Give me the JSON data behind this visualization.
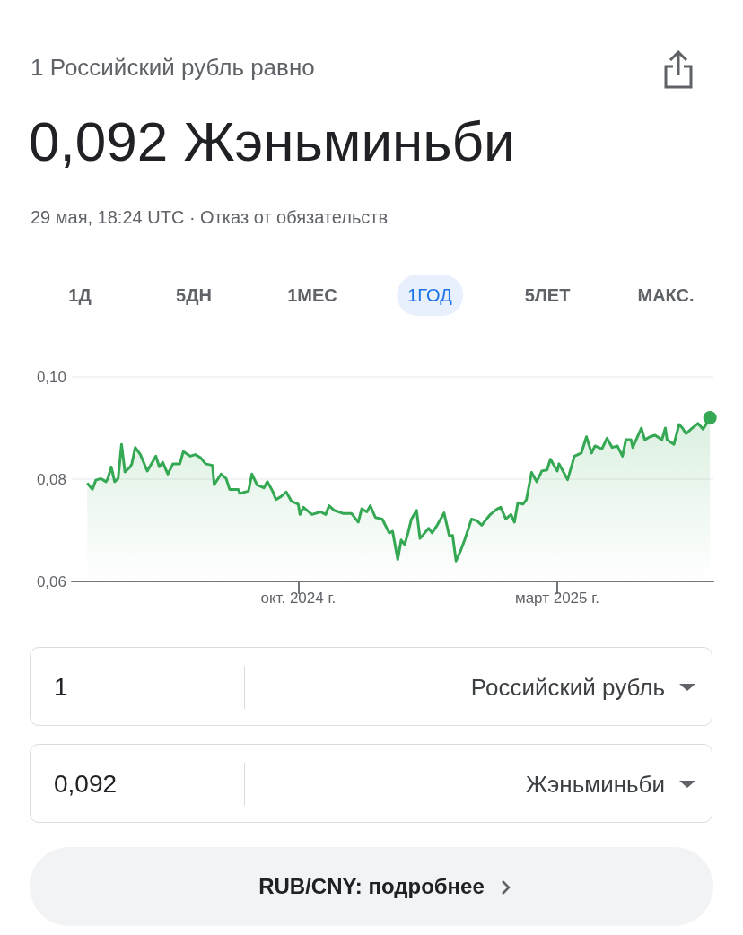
{
  "chart_data": {
    "type": "area",
    "title": "1 Российский рубль равно",
    "subtitle": "0,092 Жэньминьби",
    "annotations": [
      "29 мая, 18:24 UTC · Отказ от обязательств",
      "1Д",
      "5ДН",
      "1МЕС",
      "1ГОД",
      "5ЛЕТ",
      "МАКС.",
      "1",
      "Российский рубль",
      "0,092",
      "Жэньминьби",
      "RUB/CNY: подробнее"
    ],
    "x": [
      "2024-05-31",
      "2024-06-03",
      "2024-06-05",
      "2024-06-08",
      "2024-06-11",
      "2024-06-12",
      "2024-06-14",
      "2024-06-16",
      "2024-06-18",
      "2024-06-20",
      "2024-06-22",
      "2024-06-25",
      "2024-06-26",
      "2024-06-28",
      "2024-07-01",
      "2024-07-05",
      "2024-07-09",
      "2024-07-10",
      "2024-07-12",
      "2024-07-14",
      "2024-07-17",
      "2024-07-20",
      "2024-07-24",
      "2024-07-26",
      "2024-07-30",
      "2024-08-02",
      "2024-08-05",
      "2024-08-08",
      "2024-08-12",
      "2024-08-13",
      "2024-08-17",
      "2024-08-20",
      "2024-08-22",
      "2024-08-27",
      "2024-08-28",
      "2024-09-02",
      "2024-09-04",
      "2024-09-07",
      "2024-09-11",
      "2024-09-13",
      "2024-09-16",
      "2024-09-18",
      "2024-09-21",
      "2024-09-24",
      "2024-09-27",
      "2024-10-01",
      "2024-10-02",
      "2024-10-04",
      "2024-10-09",
      "2024-10-14",
      "2024-10-17",
      "2024-10-19",
      "2024-10-22",
      "2024-10-27",
      "2024-11-01",
      "2024-11-05",
      "2024-11-07",
      "2024-11-10",
      "2024-11-12",
      "2024-11-15",
      "2024-11-19",
      "2024-11-23",
      "2024-11-25",
      "2024-11-28",
      "2024-11-30",
      "2024-12-02",
      "2024-12-04",
      "2024-12-06",
      "2024-12-09",
      "2024-12-11",
      "2024-12-16",
      "2024-12-18",
      "2024-12-21",
      "2024-12-25",
      "2024-12-28",
      "2024-12-30",
      "2025-01-01",
      "2025-01-04",
      "2025-01-06",
      "2025-01-10",
      "2025-01-13",
      "2025-01-16",
      "2025-01-18",
      "2025-01-21",
      "2025-01-25",
      "2025-01-27",
      "2025-01-30",
      "2025-02-02",
      "2025-02-04",
      "2025-02-06",
      "2025-02-09",
      "2025-02-11",
      "2025-02-14",
      "2025-02-17",
      "2025-02-20",
      "2025-02-23",
      "2025-02-25",
      "2025-03-01",
      "2025-03-02",
      "2025-03-07",
      "2025-03-11",
      "2025-03-15",
      "2025-03-18",
      "2025-03-21",
      "2025-03-23",
      "2025-03-27",
      "2025-03-30",
      "2025-04-02",
      "2025-04-05",
      "2025-04-08",
      "2025-04-10",
      "2025-04-13",
      "2025-04-14",
      "2025-04-19",
      "2025-04-21",
      "2025-04-24",
      "2025-04-27",
      "2025-05-01",
      "2025-05-03",
      "2025-05-04",
      "2025-05-08",
      "2025-05-11",
      "2025-05-13",
      "2025-05-15",
      "2025-05-18",
      "2025-05-22",
      "2025-05-25",
      "2025-05-29"
    ],
    "series": [
      {
        "color": "#34a853",
        "values": [
          0.0792,
          0.078,
          0.0798,
          0.0801,
          0.0795,
          0.0801,
          0.0824,
          0.0795,
          0.0801,
          0.0868,
          0.0814,
          0.0824,
          0.083,
          0.0862,
          0.0848,
          0.0816,
          0.0839,
          0.0845,
          0.0824,
          0.0833,
          0.081,
          0.083,
          0.083,
          0.0854,
          0.0845,
          0.0848,
          0.0842,
          0.083,
          0.0827,
          0.0789,
          0.081,
          0.0801,
          0.078,
          0.078,
          0.0772,
          0.0777,
          0.081,
          0.0789,
          0.0783,
          0.0795,
          0.0777,
          0.076,
          0.0766,
          0.0775,
          0.0757,
          0.0751,
          0.0731,
          0.0745,
          0.0731,
          0.0736,
          0.0731,
          0.0748,
          0.0739,
          0.0733,
          0.0733,
          0.0716,
          0.0742,
          0.0736,
          0.0748,
          0.0725,
          0.0722,
          0.0695,
          0.0698,
          0.0643,
          0.0681,
          0.0672,
          0.0695,
          0.0722,
          0.0739,
          0.0684,
          0.0704,
          0.0695,
          0.071,
          0.0734,
          0.069,
          0.069,
          0.064,
          0.0663,
          0.0681,
          0.0722,
          0.0719,
          0.071,
          0.0719,
          0.0731,
          0.0742,
          0.0745,
          0.0722,
          0.0731,
          0.0716,
          0.0754,
          0.0751,
          0.076,
          0.0813,
          0.0795,
          0.0816,
          0.0818,
          0.0839,
          0.0816,
          0.083,
          0.0799,
          0.0845,
          0.0851,
          0.0883,
          0.0851,
          0.0865,
          0.0859,
          0.088,
          0.0862,
          0.0865,
          0.0845,
          0.0877,
          0.0877,
          0.0862,
          0.09,
          0.0877,
          0.0883,
          0.0886,
          0.0877,
          0.09,
          0.0877,
          0.0868,
          0.0907,
          0.09,
          0.0889,
          0.0898,
          0.0909,
          0.0898,
          0.092
        ]
      }
    ],
    "xlim": [
      "2024-05-22",
      "2025-05-31"
    ],
    "xticks": [
      {
        "value": "2024-10-01",
        "label": "окт. 2024 г."
      },
      {
        "value": "2025-03-01",
        "label": "март 2025 г."
      }
    ],
    "ylim": [
      0.06,
      0.1
    ],
    "yticks": [
      {
        "value": 0.06,
        "label": "0,06"
      },
      {
        "value": 0.08,
        "label": "0,08"
      },
      {
        "value": 0.1,
        "label": "0,10"
      }
    ],
    "grid": "y"
  }
}
